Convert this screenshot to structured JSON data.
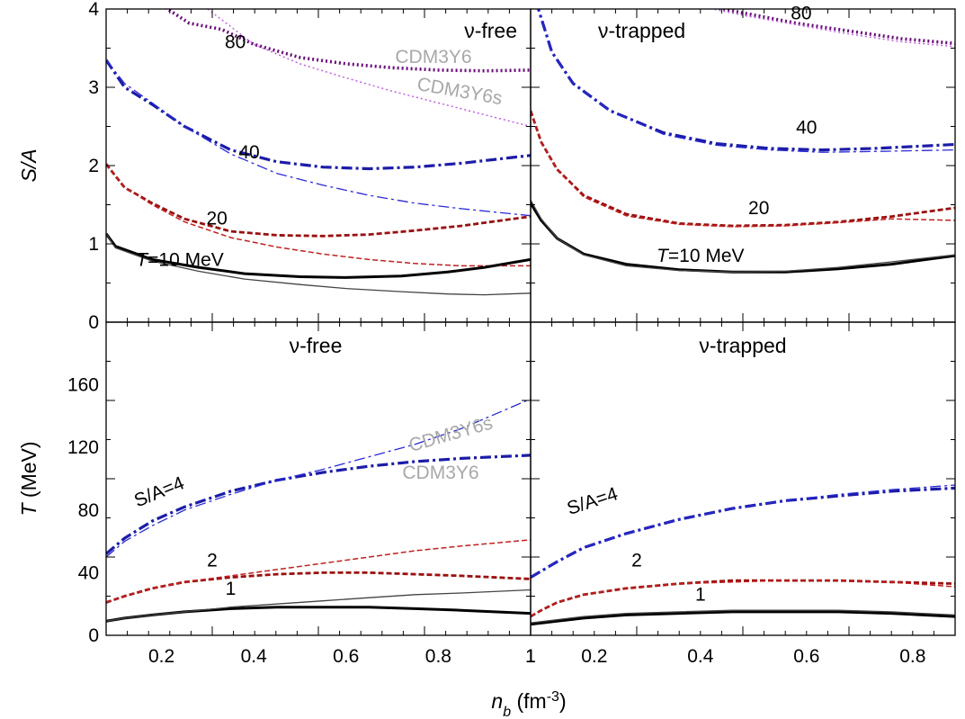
{
  "figure": {
    "xlabel": "n",
    "xlabel_sub": "b",
    "xlabel_unit": " (fm",
    "xlabel_exp": "-3",
    "xlabel_close": ")"
  },
  "chart_data": [
    {
      "id": "tl",
      "type": "line",
      "title": "ν-free",
      "ylabel": "S/A",
      "xlim": [
        0.08,
        1.0
      ],
      "ylim": [
        0,
        4
      ],
      "xticks": [
        "0.2",
        "0.4",
        "0.6",
        "0.8",
        "1"
      ],
      "yticks": [
        "0",
        "1",
        "2",
        "3",
        "4"
      ],
      "model_labels": [
        "CDM3Y6",
        "CDM3Y6s"
      ],
      "series": [
        {
          "label": "80",
          "model": "CDM3Y6",
          "style": "dot2",
          "color": "#6a0d7a",
          "x": [
            0.2,
            0.26,
            0.33,
            0.4,
            0.5,
            0.6,
            0.7,
            0.8,
            0.9,
            1.0
          ],
          "y": [
            4.05,
            3.82,
            3.74,
            3.55,
            3.38,
            3.3,
            3.25,
            3.22,
            3.21,
            3.22
          ]
        },
        {
          "label": "80",
          "model": "CDM3Y6s",
          "style": "dot2",
          "color": "#c060e0",
          "x": [
            0.3,
            0.4,
            0.5,
            0.6,
            0.7,
            0.8,
            0.9,
            1.0
          ],
          "y": [
            4.0,
            3.55,
            3.3,
            3.12,
            2.95,
            2.8,
            2.65,
            2.5
          ]
        },
        {
          "label": "40",
          "model": "CDM3Y6",
          "style": "dashdot",
          "color": "#1c1ca8",
          "x": [
            0.08,
            0.12,
            0.18,
            0.25,
            0.35,
            0.45,
            0.55,
            0.65,
            0.75,
            0.85,
            1.0
          ],
          "y": [
            3.35,
            3.0,
            2.78,
            2.5,
            2.2,
            2.05,
            1.98,
            1.96,
            1.98,
            2.03,
            2.13
          ]
        },
        {
          "label": "40",
          "model": "CDM3Y6s",
          "style": "dashdot",
          "color": "#2a2ad8",
          "x": [
            0.08,
            0.12,
            0.18,
            0.25,
            0.35,
            0.45,
            0.55,
            0.65,
            0.75,
            0.85,
            1.0
          ],
          "y": [
            3.35,
            3.05,
            2.8,
            2.5,
            2.15,
            1.9,
            1.75,
            1.62,
            1.52,
            1.45,
            1.36
          ]
        },
        {
          "label": "20",
          "model": "CDM3Y6",
          "style": "dash",
          "color": "#9a1010",
          "x": [
            0.08,
            0.12,
            0.18,
            0.25,
            0.35,
            0.45,
            0.55,
            0.65,
            0.75,
            0.85,
            1.0
          ],
          "y": [
            2.02,
            1.72,
            1.52,
            1.32,
            1.16,
            1.11,
            1.1,
            1.12,
            1.17,
            1.23,
            1.35
          ]
        },
        {
          "label": "20",
          "model": "CDM3Y6s",
          "style": "dash",
          "color": "#c02020",
          "x": [
            0.08,
            0.12,
            0.18,
            0.25,
            0.35,
            0.45,
            0.55,
            0.65,
            0.75,
            0.85,
            1.0
          ],
          "y": [
            2.02,
            1.72,
            1.5,
            1.28,
            1.08,
            0.96,
            0.87,
            0.8,
            0.75,
            0.72,
            0.72
          ]
        },
        {
          "label": "T=10 MeV",
          "model": "CDM3Y6",
          "style": "solid",
          "color": "#000000",
          "x": [
            0.08,
            0.1,
            0.18,
            0.28,
            0.38,
            0.5,
            0.6,
            0.72,
            0.82,
            0.9,
            1.0
          ],
          "y": [
            1.13,
            0.97,
            0.8,
            0.7,
            0.62,
            0.58,
            0.57,
            0.59,
            0.64,
            0.7,
            0.8
          ]
        },
        {
          "label": "T=10 MeV",
          "model": "CDM3Y6s",
          "style": "thin",
          "color": "#444444",
          "x": [
            0.08,
            0.1,
            0.18,
            0.28,
            0.38,
            0.5,
            0.6,
            0.72,
            0.82,
            0.9,
            1.0
          ],
          "y": [
            1.13,
            0.95,
            0.78,
            0.65,
            0.55,
            0.48,
            0.43,
            0.39,
            0.36,
            0.35,
            0.37
          ]
        }
      ],
      "labels": [
        {
          "text": "80",
          "x": 0.36,
          "y": 3.5
        },
        {
          "text": "40",
          "x": 0.39,
          "y": 2.09
        },
        {
          "text": "20",
          "x": 0.32,
          "y": 1.25
        },
        {
          "text": "T=10 MeV",
          "x": 0.24,
          "y": 0.72
        }
      ]
    },
    {
      "id": "tr",
      "type": "line",
      "title": "ν-trapped",
      "xlim": [
        0.0,
        0.8
      ],
      "ylim": [
        0,
        4
      ],
      "xticks": [],
      "yticks": [],
      "series": [
        {
          "label": "80",
          "model": "CDM3Y6",
          "style": "dot2",
          "color": "#6a0d7a",
          "x": [
            0.33,
            0.4,
            0.5,
            0.6,
            0.7,
            0.8
          ],
          "y": [
            4.05,
            3.95,
            3.82,
            3.72,
            3.62,
            3.56
          ]
        },
        {
          "label": "80",
          "model": "CDM3Y6s",
          "style": "dot2",
          "color": "#c060e0",
          "x": [
            0.33,
            0.4,
            0.5,
            0.6,
            0.7,
            0.8
          ],
          "y": [
            4.02,
            3.92,
            3.8,
            3.68,
            3.58,
            3.52
          ]
        },
        {
          "label": "40",
          "model": "CDM3Y6",
          "style": "dashdot",
          "color": "#1c1ca8",
          "x": [
            0.01,
            0.04,
            0.08,
            0.15,
            0.25,
            0.35,
            0.45,
            0.55,
            0.65,
            0.8
          ],
          "y": [
            4.1,
            3.45,
            3.05,
            2.7,
            2.42,
            2.28,
            2.22,
            2.2,
            2.22,
            2.27
          ]
        },
        {
          "label": "40",
          "model": "CDM3Y6s",
          "style": "dashdot",
          "color": "#2a2ad8",
          "x": [
            0.01,
            0.04,
            0.08,
            0.15,
            0.25,
            0.35,
            0.45,
            0.55,
            0.65,
            0.8
          ],
          "y": [
            4.1,
            3.45,
            3.05,
            2.7,
            2.4,
            2.26,
            2.2,
            2.17,
            2.18,
            2.2
          ]
        },
        {
          "label": "20",
          "model": "CDM3Y6",
          "style": "dash",
          "color": "#9a1010",
          "x": [
            0.0,
            0.02,
            0.05,
            0.1,
            0.18,
            0.28,
            0.38,
            0.48,
            0.58,
            0.68,
            0.8
          ],
          "y": [
            2.7,
            2.3,
            1.95,
            1.62,
            1.38,
            1.26,
            1.23,
            1.24,
            1.28,
            1.35,
            1.46
          ]
        },
        {
          "label": "20",
          "model": "CDM3Y6s",
          "style": "dash",
          "color": "#c02020",
          "x": [
            0.0,
            0.02,
            0.05,
            0.1,
            0.18,
            0.28,
            0.38,
            0.48,
            0.58,
            0.68,
            0.8
          ],
          "y": [
            2.7,
            2.3,
            1.95,
            1.6,
            1.36,
            1.25,
            1.22,
            1.23,
            1.27,
            1.32,
            1.3
          ]
        },
        {
          "label": "T=10 MeV",
          "model": "CDM3Y6",
          "style": "solid",
          "color": "#000000",
          "x": [
            0.0,
            0.02,
            0.05,
            0.1,
            0.18,
            0.28,
            0.38,
            0.48,
            0.58,
            0.68,
            0.8
          ],
          "y": [
            1.52,
            1.3,
            1.07,
            0.87,
            0.74,
            0.67,
            0.64,
            0.64,
            0.68,
            0.74,
            0.85
          ]
        },
        {
          "label": "T=10 MeV",
          "model": "CDM3Y6s",
          "style": "thin",
          "color": "#444444",
          "x": [
            0.0,
            0.02,
            0.05,
            0.1,
            0.18,
            0.28,
            0.38,
            0.48,
            0.58,
            0.68,
            0.8
          ],
          "y": [
            1.56,
            1.32,
            1.07,
            0.86,
            0.72,
            0.66,
            0.64,
            0.65,
            0.7,
            0.77,
            0.86
          ]
        }
      ],
      "labels": [
        {
          "text": "80",
          "x": 0.51,
          "y": 3.87
        },
        {
          "text": "40",
          "x": 0.52,
          "y": 2.41
        },
        {
          "text": "20",
          "x": 0.43,
          "y": 1.38
        },
        {
          "text": "T=10 MeV",
          "x": 0.32,
          "y": 0.77
        }
      ]
    },
    {
      "id": "bl",
      "type": "line",
      "title": "ν-free",
      "ylabel": "T (MeV)",
      "xlim": [
        0.08,
        1.0
      ],
      "ylim": [
        0,
        200
      ],
      "xticks": [
        "0.2",
        "0.4",
        "0.6",
        "0.8",
        "1"
      ],
      "yticks": [
        "0",
        "40",
        "80",
        "120",
        "160"
      ],
      "model_labels": [
        "CDM3Y6s",
        "CDM3Y6"
      ],
      "series": [
        {
          "label": "S/A=4",
          "model": "CDM3Y6",
          "style": "dashdot",
          "color": "#1c1ca8",
          "x": [
            0.08,
            0.12,
            0.18,
            0.25,
            0.35,
            0.45,
            0.55,
            0.65,
            0.75,
            0.85,
            1.0
          ],
          "y": [
            52,
            62,
            73,
            82,
            92,
            99,
            104,
            108,
            111,
            113,
            115
          ]
        },
        {
          "label": "S/A=4",
          "model": "CDM3Y6s",
          "style": "dashdot",
          "color": "#2a2ad8",
          "x": [
            0.08,
            0.12,
            0.18,
            0.25,
            0.35,
            0.45,
            0.55,
            0.65,
            0.75,
            0.85,
            1.0
          ],
          "y": [
            50,
            60,
            70,
            80,
            90,
            99,
            106,
            114,
            122,
            132,
            151
          ]
        },
        {
          "label": "2",
          "model": "CDM3Y6",
          "style": "dash",
          "color": "#9a1010",
          "x": [
            0.08,
            0.12,
            0.18,
            0.25,
            0.35,
            0.45,
            0.55,
            0.65,
            0.75,
            0.85,
            1.0
          ],
          "y": [
            21,
            25,
            30,
            34,
            37,
            39,
            40,
            40,
            39,
            38,
            36
          ]
        },
        {
          "label": "2",
          "model": "CDM3Y6s",
          "style": "dash",
          "color": "#c02020",
          "x": [
            0.08,
            0.12,
            0.18,
            0.25,
            0.35,
            0.45,
            0.55,
            0.65,
            0.75,
            0.85,
            1.0
          ],
          "y": [
            21,
            25,
            30,
            34,
            38,
            42,
            46,
            50,
            54,
            57,
            61
          ]
        },
        {
          "label": "1",
          "model": "CDM3Y6",
          "style": "solid",
          "color": "#000000",
          "x": [
            0.08,
            0.12,
            0.18,
            0.25,
            0.35,
            0.45,
            0.55,
            0.65,
            0.75,
            0.85,
            1.0
          ],
          "y": [
            9,
            11,
            13,
            15,
            17,
            18,
            18,
            18,
            17,
            16,
            14
          ]
        },
        {
          "label": "1",
          "model": "CDM3Y6s",
          "style": "thin",
          "color": "#444444",
          "x": [
            0.08,
            0.12,
            0.18,
            0.25,
            0.35,
            0.45,
            0.55,
            0.65,
            0.75,
            0.85,
            1.0
          ],
          "y": [
            9,
            11,
            13,
            15,
            18,
            20,
            22,
            24,
            26,
            27,
            29
          ]
        }
      ],
      "labels": [
        {
          "text": "S/A=4",
          "x": 0.2,
          "y": 88,
          "rotate": -22
        },
        {
          "text": "2",
          "x": 0.31,
          "y": 44
        },
        {
          "text": "1",
          "x": 0.35,
          "y": 26
        }
      ]
    },
    {
      "id": "br",
      "type": "line",
      "title": "ν-trapped",
      "xlim": [
        0.0,
        0.8
      ],
      "ylim": [
        0,
        200
      ],
      "xticks": [
        "1",
        "0.2",
        "0.4",
        "0.6",
        "0.8",
        "1"
      ],
      "yticks": [],
      "series": [
        {
          "label": "S/A=4",
          "model": "CDM3Y6",
          "style": "dashdot",
          "color": "#1c1ca8",
          "x": [
            0.0,
            0.05,
            0.1,
            0.18,
            0.28,
            0.38,
            0.48,
            0.58,
            0.68,
            0.8
          ],
          "y": [
            37,
            47,
            56,
            65,
            74,
            81,
            86,
            89,
            92,
            94
          ]
        },
        {
          "label": "S/A=4",
          "model": "CDM3Y6s",
          "style": "dashdot",
          "color": "#2a2ad8",
          "x": [
            0.0,
            0.05,
            0.1,
            0.18,
            0.28,
            0.38,
            0.48,
            0.58,
            0.68,
            0.8
          ],
          "y": [
            37,
            47,
            56,
            65,
            74,
            81,
            86,
            90,
            93,
            96
          ]
        },
        {
          "label": "2",
          "model": "CDM3Y6",
          "style": "dash",
          "color": "#9a1010",
          "x": [
            0.0,
            0.02,
            0.05,
            0.1,
            0.18,
            0.28,
            0.38,
            0.48,
            0.58,
            0.68,
            0.8
          ],
          "y": [
            12,
            16,
            21,
            26,
            30,
            33,
            35,
            35,
            35,
            34,
            33
          ]
        },
        {
          "label": "2",
          "model": "CDM3Y6s",
          "style": "dash",
          "color": "#c02020",
          "x": [
            0.0,
            0.02,
            0.05,
            0.1,
            0.18,
            0.28,
            0.38,
            0.48,
            0.58,
            0.68,
            0.8
          ],
          "y": [
            12,
            16,
            21,
            26,
            30,
            33,
            34,
            35,
            35,
            34,
            31
          ]
        },
        {
          "label": "1",
          "model": "CDM3Y6",
          "style": "solid",
          "color": "#000000",
          "x": [
            0.0,
            0.05,
            0.1,
            0.18,
            0.28,
            0.38,
            0.48,
            0.58,
            0.68,
            0.8
          ],
          "y": [
            7,
            9,
            11,
            13,
            14,
            15,
            15,
            15,
            14,
            12
          ]
        },
        {
          "label": "1",
          "model": "CDM3Y6s",
          "style": "thin",
          "color": "#444444",
          "x": [
            0.0,
            0.05,
            0.1,
            0.18,
            0.28,
            0.38,
            0.48,
            0.58,
            0.68,
            0.8
          ],
          "y": [
            8,
            10,
            12,
            14,
            15,
            16,
            16,
            16,
            15,
            13
          ]
        }
      ],
      "labels": [
        {
          "text": "S/A=4",
          "x": 0.12,
          "y": 82,
          "rotate": -18
        },
        {
          "text": "2",
          "x": 0.2,
          "y": 44
        },
        {
          "text": "1",
          "x": 0.32,
          "y": 22
        }
      ]
    }
  ]
}
